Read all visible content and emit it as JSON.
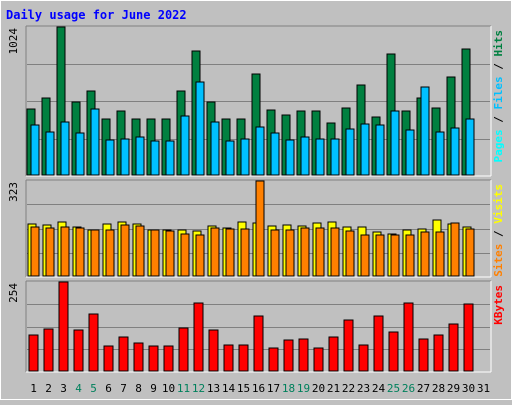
{
  "chart_data": [
    {
      "type": "bar",
      "title": "Daily usage for June 2022",
      "categories": [
        "1",
        "2",
        "3",
        "4",
        "5",
        "6",
        "7",
        "8",
        "9",
        "10",
        "11",
        "12",
        "13",
        "14",
        "15",
        "16",
        "17",
        "18",
        "19",
        "20",
        "21",
        "22",
        "23",
        "24",
        "25",
        "26",
        "27",
        "28",
        "29",
        "30",
        "31"
      ],
      "weekend_days": [
        "4",
        "5",
        "11",
        "12",
        "18",
        "19",
        "25",
        "26"
      ],
      "ymax_label": "1024",
      "ylim": [
        0,
        1024
      ],
      "grid": true,
      "axis_label_parts": [
        "Pages",
        "Files",
        "Hits"
      ],
      "series": [
        {
          "name": "Hits",
          "color": "#008040",
          "values": [
            458,
            536,
            1024,
            506,
            581,
            388,
            446,
            388,
            388,
            388,
            581,
            857,
            506,
            388,
            388,
            698,
            450,
            415,
            440,
            440,
            360,
            467,
            620,
            402,
            837,
            440,
            536,
            467,
            676,
            870,
            0
          ]
        },
        {
          "name": "Files",
          "color": "#00c0ff",
          "values": [
            345,
            295,
            367,
            289,
            459,
            244,
            250,
            260,
            235,
            235,
            411,
            644,
            367,
            235,
            250,
            334,
            289,
            240,
            265,
            250,
            250,
            321,
            353,
            343,
            445,
            311,
            610,
            295,
            322,
            389,
            0
          ]
        },
        {
          "name": "Pages",
          "color": "#00ffff",
          "values": [
            0,
            0,
            0,
            0,
            0,
            0,
            0,
            0,
            0,
            0,
            0,
            0,
            0,
            0,
            0,
            0,
            0,
            0,
            0,
            0,
            0,
            0,
            0,
            0,
            0,
            0,
            0,
            0,
            0,
            0,
            0
          ]
        }
      ]
    },
    {
      "type": "bar",
      "ymax_label": "323",
      "ylim": [
        0,
        323
      ],
      "grid": true,
      "axis_label_parts": [
        "Sites",
        "Visits"
      ],
      "series": [
        {
          "name": "Visits",
          "color": "#ffff00",
          "values": [
            176,
            174,
            182,
            168,
            157,
            178,
            182,
            177,
            155,
            155,
            157,
            154,
            170,
            164,
            183,
            179,
            170,
            172,
            171,
            179,
            183,
            167,
            165,
            148,
            142,
            155,
            161,
            190,
            177,
            168,
            0
          ]
        },
        {
          "name": "Sites",
          "color": "#ff8000",
          "values": [
            166,
            162,
            165,
            164,
            158,
            156,
            174,
            170,
            158,
            154,
            143,
            138,
            163,
            161,
            161,
            323,
            156,
            155,
            163,
            164,
            163,
            154,
            140,
            139,
            140,
            140,
            148,
            151,
            181,
            160,
            0
          ]
        }
      ]
    },
    {
      "type": "bar",
      "ymax_label": "254",
      "ylim": [
        0,
        254
      ],
      "grid": true,
      "axis_label_parts": [
        "KBytes"
      ],
      "series": [
        {
          "name": "KBytes",
          "color": "#ff0000",
          "values": [
            103,
            120,
            254,
            117,
            163,
            70,
            98,
            80,
            71,
            72,
            122,
            195,
            118,
            75,
            74,
            156,
            65,
            88,
            92,
            67,
            97,
            145,
            73,
            156,
            110,
            195,
            91,
            102,
            134,
            192,
            0
          ]
        }
      ]
    }
  ],
  "colors": {
    "background": "#c0c0c0",
    "plot_background": "#c0c0c0",
    "title": "#0000ff",
    "weekday_label": "#000000",
    "weekend_label": "#00805c",
    "separator": "#000000"
  }
}
